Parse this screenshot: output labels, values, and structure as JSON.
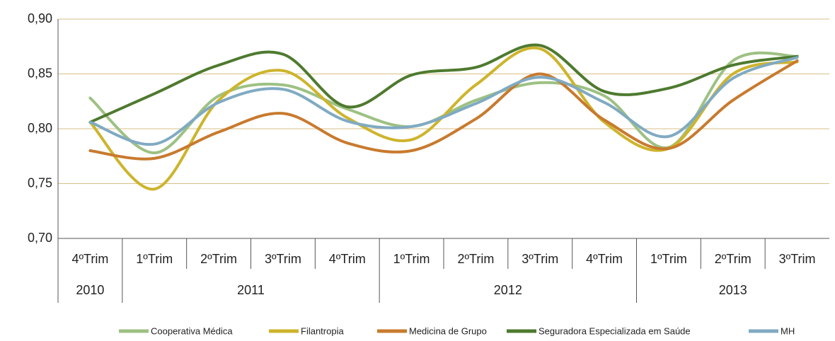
{
  "chart_data": {
    "type": "line",
    "groups": [
      {
        "name": "2010",
        "categories": [
          "4ºTrim"
        ]
      },
      {
        "name": "2011",
        "categories": [
          "1ºTrim",
          "2ºTrim",
          "3ºTrim",
          "4ºTrim"
        ]
      },
      {
        "name": "2012",
        "categories": [
          "1ºTrim",
          "2ºTrim",
          "3ºTrim",
          "4ºTrim"
        ]
      },
      {
        "name": "2013",
        "categories": [
          "1ºTrim",
          "2ºTrim",
          "3ºTrim"
        ]
      }
    ],
    "series": [
      {
        "name": "Cooperativa Médica",
        "color": "#9dc183",
        "values": [
          0.828,
          0.778,
          0.83,
          0.84,
          0.818,
          0.802,
          0.826,
          0.842,
          0.83,
          0.783,
          0.862,
          0.866
        ]
      },
      {
        "name": "Filantropia",
        "color": "#cdb42c",
        "values": [
          0.806,
          0.745,
          0.826,
          0.853,
          0.81,
          0.79,
          0.84,
          0.873,
          0.806,
          0.782,
          0.85,
          0.861
        ]
      },
      {
        "name": "Medicina de Grupo",
        "color": "#c87a2e",
        "values": [
          0.78,
          0.773,
          0.797,
          0.814,
          0.787,
          0.78,
          0.809,
          0.85,
          0.808,
          0.782,
          0.826,
          0.862
        ]
      },
      {
        "name": "Seguradora Especializada em Saúde",
        "color": "#4e7a2f",
        "values": [
          0.806,
          0.832,
          0.858,
          0.868,
          0.82,
          0.849,
          0.856,
          0.876,
          0.834,
          0.837,
          0.858,
          0.866
        ]
      },
      {
        "name": "MH",
        "color": "#80aac2",
        "values": [
          0.806,
          0.786,
          0.824,
          0.836,
          0.807,
          0.802,
          0.823,
          0.847,
          0.824,
          0.793,
          0.846,
          0.865
        ]
      }
    ],
    "ylim": [
      0.7,
      0.9
    ],
    "yticks": [
      {
        "value": 0.7,
        "label": "0,70"
      },
      {
        "value": 0.75,
        "label": "0,75"
      },
      {
        "value": 0.8,
        "label": "0,80"
      },
      {
        "value": 0.85,
        "label": "0,85"
      },
      {
        "value": 0.9,
        "label": "0,90"
      }
    ],
    "grid": true
  }
}
